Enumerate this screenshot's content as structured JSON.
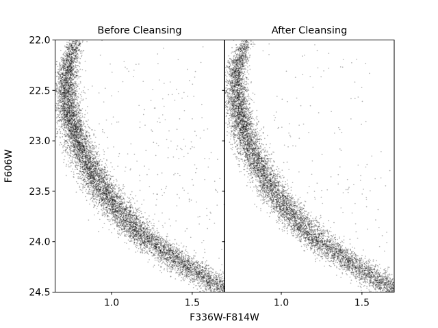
{
  "chart_data": {
    "type": "scatter",
    "xlabel": "F336W-F814W",
    "ylabel": "F606W",
    "xlim": [
      0.65,
      1.7
    ],
    "ylim": [
      24.5,
      22.0
    ],
    "y_inverted": true,
    "grid": false,
    "marker_color": "#000000",
    "marker_alpha": 0.3,
    "xticks": [
      1.0,
      1.5
    ],
    "xtick_labels": [
      "1.0",
      "1.5"
    ],
    "yticks": [
      22.0,
      22.5,
      23.0,
      23.5,
      24.0,
      24.5
    ],
    "ytick_labels": [
      "22.0",
      "22.5",
      "23.0",
      "23.5",
      "24.0",
      "24.5"
    ],
    "panels": [
      {
        "title": "Before Cleansing",
        "ridge_line": {
          "x": [
            0.78,
            0.73,
            0.72,
            0.74,
            0.79,
            0.86,
            0.95,
            1.05,
            1.16,
            1.28,
            1.42,
            1.57,
            1.7
          ],
          "y": [
            22.0,
            22.25,
            22.5,
            22.75,
            23.0,
            23.25,
            23.5,
            23.7,
            23.9,
            24.05,
            24.2,
            24.35,
            24.47
          ]
        },
        "stars_approx": 9000,
        "outliers_approx": 320
      },
      {
        "title": "After Cleansing",
        "ridge_line": {
          "x": [
            0.78,
            0.73,
            0.72,
            0.74,
            0.79,
            0.86,
            0.95,
            1.05,
            1.16,
            1.28,
            1.42,
            1.57,
            1.7
          ],
          "y": [
            22.0,
            22.25,
            22.5,
            22.75,
            23.0,
            23.25,
            23.5,
            23.7,
            23.9,
            24.05,
            24.2,
            24.35,
            24.47
          ]
        },
        "stars_approx": 8000,
        "outliers_approx": 220
      }
    ]
  }
}
